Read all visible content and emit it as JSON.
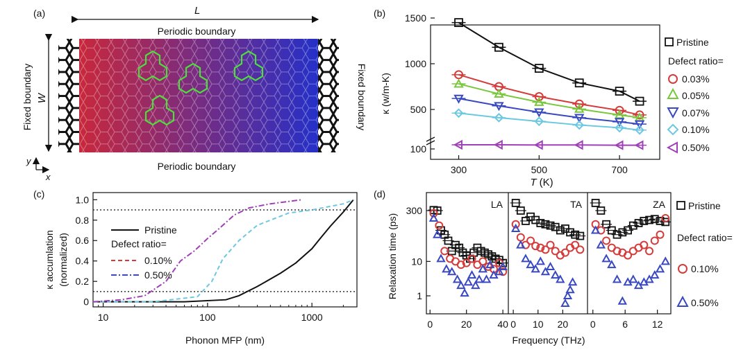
{
  "panel_labels": {
    "a": "(a)",
    "b": "(b)",
    "c": "(c)",
    "d": "(d)"
  },
  "panel_a": {
    "length_label": "L",
    "width_label": "W",
    "top_boundary": "Periodic boundary",
    "bottom_boundary": "Periodic boundary",
    "left_boundary": "Fixed boundary",
    "right_boundary": "Fixed boundary",
    "axis_y": "y",
    "axis_x": "x",
    "colors": {
      "hot": "#c8283c",
      "cold": "#2530c8",
      "fixed": "#111111",
      "defect": "#4fdc3c"
    }
  },
  "colors": {
    "pristine": "#111111",
    "d003": "#d43c3c",
    "d005": "#78c83c",
    "d007": "#3848c0",
    "d010": "#6cc8e0",
    "d050": "#a040b8"
  },
  "chart_data": [
    {
      "panel": "b",
      "type": "line",
      "xlabel_var": "T",
      "xlabel_unit": " (K)",
      "ylabel": "κ (w/m-K)",
      "xlim": [
        230,
        800
      ],
      "xticks": [
        300,
        500,
        700
      ],
      "yticks": [
        100,
        500,
        1000,
        1500
      ],
      "axis_break": "between 100 and 200",
      "legend_title": "Defect ratio=",
      "x": [
        300,
        400,
        500,
        600,
        700,
        750
      ],
      "series": [
        {
          "name": "Pristine",
          "marker": "square",
          "values": [
            1450,
            1180,
            950,
            790,
            700,
            590
          ]
        },
        {
          "name": "0.03%",
          "marker": "circle",
          "values": [
            880,
            750,
            640,
            560,
            490,
            440
          ]
        },
        {
          "name": "0.05%",
          "marker": "triangle-up",
          "values": [
            780,
            670,
            580,
            505,
            440,
            410
          ]
        },
        {
          "name": "0.07%",
          "marker": "triangle-down",
          "values": [
            620,
            540,
            470,
            410,
            365,
            340
          ]
        },
        {
          "name": "0.10%",
          "marker": "diamond",
          "values": [
            460,
            410,
            370,
            330,
            300,
            275
          ]
        },
        {
          "name": "0.50%",
          "marker": "triangle-left",
          "values": [
            120,
            120,
            119,
            119,
            118,
            118
          ]
        }
      ]
    },
    {
      "panel": "c",
      "type": "line",
      "xlabel": "Phonon MFP (nm)",
      "ylabel_line1": "κ accumlation",
      "ylabel_line2": "(normalized)",
      "xscale": "log",
      "xlim": [
        8,
        2700
      ],
      "ylim": [
        -0.05,
        1.07
      ],
      "xtick_labels": [
        "10",
        "100",
        "1000"
      ],
      "ytick_labels": [
        "0",
        "0.2",
        "0.4",
        "0.6",
        "0.8",
        "1.0"
      ],
      "reference_lines": [
        0.1,
        0.9
      ],
      "legend_title": "Defect ratio=",
      "series": [
        {
          "name": "Pristine",
          "style": "solid",
          "x": [
            8,
            60,
            150,
            200,
            300,
            500,
            700,
            1000,
            1200,
            1500,
            2000,
            2500
          ],
          "y": [
            0,
            0,
            0.02,
            0.06,
            0.15,
            0.28,
            0.38,
            0.52,
            0.62,
            0.74,
            0.88,
            1.0
          ]
        },
        {
          "name": "0.10%",
          "style": "dashed",
          "x": [
            8,
            30,
            80,
            110,
            140,
            200,
            300,
            450,
            600,
            1000,
            2000,
            2500
          ],
          "y": [
            0,
            0,
            0.05,
            0.2,
            0.42,
            0.6,
            0.75,
            0.82,
            0.87,
            0.9,
            0.96,
            1.0
          ]
        },
        {
          "name": "0.50%",
          "style": "dash-dot",
          "x": [
            8,
            15,
            25,
            40,
            55,
            75,
            100,
            130,
            180,
            250,
            400,
            800
          ],
          "y": [
            0,
            0.02,
            0.06,
            0.2,
            0.4,
            0.5,
            0.62,
            0.72,
            0.85,
            0.92,
            0.96,
            1.0
          ]
        }
      ]
    },
    {
      "panel": "d",
      "type": "scatter",
      "xlabel": "Frequency (THz)",
      "ylabel": "Relaxation time (ps)",
      "yscale": "log",
      "yticks": [
        1,
        10,
        300
      ],
      "legend_title": "Defect ratio=",
      "subplots": [
        {
          "title": "LA",
          "xlim": [
            -2,
            43
          ],
          "xticks": [
            0,
            20,
            40
          ],
          "series": [
            {
              "name": "Pristine",
              "marker": "square",
              "points": [
                [
                  2,
                  310
                ],
                [
                  4,
                  300
                ],
                [
                  6,
                  80
                ],
                [
                  8,
                  60
                ],
                [
                  10,
                  40
                ],
                [
                  12,
                  20
                ],
                [
                  14,
                  30
                ],
                [
                  16,
                  25
                ],
                [
                  18,
                  18
                ],
                [
                  20,
                  15
                ],
                [
                  22,
                  12
                ],
                [
                  24,
                  18
                ],
                [
                  26,
                  25
                ],
                [
                  28,
                  20
                ],
                [
                  30,
                  18
                ],
                [
                  32,
                  16
                ],
                [
                  34,
                  14
                ],
                [
                  36,
                  12
                ],
                [
                  38,
                  11
                ],
                [
                  40,
                  9
                ]
              ]
            },
            {
              "name": "0.10%",
              "marker": "circle",
              "points": [
                [
                  2,
                  250
                ],
                [
                  5,
                  110
                ],
                [
                  8,
                  20
                ],
                [
                  11,
                  12
                ],
                [
                  14,
                  10
                ],
                [
                  17,
                  8
                ],
                [
                  20,
                  9
                ],
                [
                  23,
                  12
                ],
                [
                  26,
                  8
                ],
                [
                  29,
                  10
                ],
                [
                  32,
                  7
                ],
                [
                  35,
                  6
                ],
                [
                  38,
                  9
                ],
                [
                  40,
                  5
                ]
              ]
            },
            {
              "name": "0.50%",
              "marker": "triangle-up",
              "points": [
                [
                  2,
                  180
                ],
                [
                  4,
                  60
                ],
                [
                  6,
                  12
                ],
                [
                  9,
                  6
                ],
                [
                  12,
                  5
                ],
                [
                  15,
                  3
                ],
                [
                  17,
                  2
                ],
                [
                  19,
                  1.2
                ],
                [
                  21,
                  2.5
                ],
                [
                  23,
                  4
                ],
                [
                  25,
                  2
                ],
                [
                  27,
                  3
                ],
                [
                  29,
                  6
                ],
                [
                  31,
                  3
                ],
                [
                  33,
                  8
                ],
                [
                  35,
                  4
                ],
                [
                  38,
                  5
                ],
                [
                  40,
                  7
                ]
              ]
            }
          ]
        },
        {
          "title": "TA",
          "xlim": [
            -2,
            30
          ],
          "xticks": [
            0,
            10,
            20
          ],
          "series": [
            {
              "name": "Pristine",
              "marker": "square",
              "points": [
                [
                  1,
                  500
                ],
                [
                  3,
                  300
                ],
                [
                  5,
                  150
                ],
                [
                  7,
                  200
                ],
                [
                  9,
                  160
                ],
                [
                  11,
                  130
                ],
                [
                  13,
                  120
                ],
                [
                  15,
                  110
                ],
                [
                  17,
                  100
                ],
                [
                  19,
                  80
                ],
                [
                  21,
                  90
                ],
                [
                  23,
                  70
                ],
                [
                  25,
                  60
                ],
                [
                  27,
                  55
                ]
              ]
            },
            {
              "name": "0.10%",
              "marker": "circle",
              "points": [
                [
                  1,
                  120
                ],
                [
                  3,
                  50
                ],
                [
                  5,
                  30
                ],
                [
                  7,
                  40
                ],
                [
                  9,
                  28
                ],
                [
                  11,
                  25
                ],
                [
                  13,
                  22
                ],
                [
                  15,
                  30
                ],
                [
                  17,
                  20
                ],
                [
                  19,
                  15
                ],
                [
                  21,
                  18
                ],
                [
                  23,
                  25
                ],
                [
                  25,
                  30
                ],
                [
                  27,
                  22
                ]
              ]
            },
            {
              "name": "0.50%",
              "marker": "triangle-up",
              "points": [
                [
                  1,
                  90
                ],
                [
                  3,
                  30
                ],
                [
                  5,
                  12
                ],
                [
                  7,
                  8
                ],
                [
                  9,
                  6
                ],
                [
                  11,
                  10
                ],
                [
                  13,
                  5
                ],
                [
                  15,
                  7
                ],
                [
                  17,
                  4
                ],
                [
                  19,
                  3
                ],
                [
                  21,
                  0.6
                ],
                [
                  22,
                  1
                ],
                [
                  23,
                  1.5
                ],
                [
                  24,
                  2.5
                ]
              ]
            }
          ]
        },
        {
          "title": "ZA",
          "xlim": [
            -1,
            14.5
          ],
          "xticks": [
            0,
            6,
            12
          ],
          "series": [
            {
              "name": "Pristine",
              "marker": "square",
              "points": [
                [
                  0.5,
                  500
                ],
                [
                  1.5,
                  300
                ],
                [
                  2.5,
                  120
                ],
                [
                  3.5,
                  80
                ],
                [
                  4.5,
                  60
                ],
                [
                  5.5,
                  70
                ],
                [
                  6.5,
                  80
                ],
                [
                  7.5,
                  110
                ],
                [
                  8.5,
                  130
                ],
                [
                  9.5,
                  150
                ],
                [
                  10.5,
                  160
                ],
                [
                  11.5,
                  170
                ],
                [
                  12.5,
                  150
                ],
                [
                  13.5,
                  140
                ]
              ]
            },
            {
              "name": "0.10%",
              "marker": "circle",
              "points": [
                [
                  0.5,
                  120
                ],
                [
                  1.5,
                  80
                ],
                [
                  2.5,
                  40
                ],
                [
                  3.5,
                  25
                ],
                [
                  4.5,
                  20
                ],
                [
                  5.5,
                  18
                ],
                [
                  6.5,
                  15
                ],
                [
                  7.5,
                  20
                ],
                [
                  8.5,
                  25
                ],
                [
                  9.5,
                  30
                ],
                [
                  10.5,
                  20
                ],
                [
                  11.5,
                  40
                ],
                [
                  12.5,
                  60
                ],
                [
                  13.5,
                  180
                ]
              ]
            },
            {
              "name": "0.50%",
              "marker": "triangle-up",
              "points": [
                [
                  0.5,
                  80
                ],
                [
                  1.5,
                  30
                ],
                [
                  2.5,
                  12
                ],
                [
                  3.5,
                  8
                ],
                [
                  4.5,
                  3
                ],
                [
                  5.5,
                  0.7
                ],
                [
                  6.5,
                  2.5
                ],
                [
                  7.5,
                  3
                ],
                [
                  8.5,
                  2
                ],
                [
                  9.5,
                  2.5
                ],
                [
                  10.5,
                  3
                ],
                [
                  11.5,
                  4
                ],
                [
                  12.5,
                  6
                ],
                [
                  13.5,
                  10
                ]
              ]
            }
          ]
        }
      ]
    }
  ]
}
